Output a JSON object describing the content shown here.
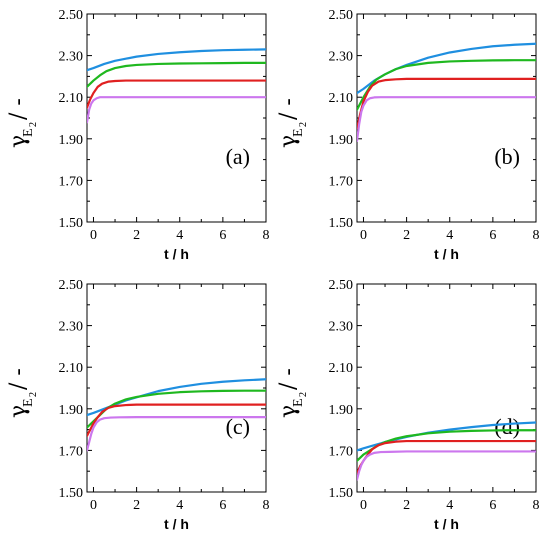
{
  "colors": {
    "blue": "#1f8fe0",
    "green": "#1fb81f",
    "red": "#e02020",
    "purple": "#cc77ee",
    "axis": "#000000"
  },
  "chart_data": [
    {
      "type": "line",
      "panel_label": "(a)",
      "xlabel": "t / h",
      "ylabel": {
        "symbol": "γ",
        "sub": "E",
        "subsub": "2",
        "suffix": "/ -"
      },
      "xlim": [
        -0.3,
        8
      ],
      "ylim": [
        1.5,
        2.5
      ],
      "xticks": [
        0,
        2,
        4,
        6,
        8
      ],
      "xtick_labels": [
        "0",
        "2",
        "4",
        "6",
        "8"
      ],
      "yticks": [
        1.5,
        1.7,
        1.9,
        2.1,
        2.3,
        2.5
      ],
      "ytick_labels": [
        "1.50",
        "1.70",
        "1.90",
        "2.10",
        "2.30",
        "2.50"
      ],
      "series": [
        {
          "color_key": "blue",
          "x": [
            -0.3,
            0,
            0.5,
            1,
            1.5,
            2,
            3,
            4,
            5,
            6,
            7,
            8
          ],
          "y": [
            2.23,
            2.24,
            2.26,
            2.275,
            2.285,
            2.295,
            2.308,
            2.316,
            2.322,
            2.326,
            2.328,
            2.33
          ]
        },
        {
          "color_key": "green",
          "x": [
            -0.3,
            0,
            0.3,
            0.6,
            1,
            1.5,
            2,
            3,
            4,
            5,
            6,
            7,
            8
          ],
          "y": [
            2.15,
            2.18,
            2.205,
            2.225,
            2.24,
            2.25,
            2.255,
            2.26,
            2.262,
            2.263,
            2.264,
            2.265,
            2.265
          ]
        },
        {
          "color_key": "red",
          "x": [
            -0.3,
            -0.15,
            0,
            0.2,
            0.4,
            0.7,
            1,
            1.5,
            2,
            3,
            4,
            5,
            6,
            7,
            8
          ],
          "y": [
            2.05,
            2.09,
            2.12,
            2.15,
            2.165,
            2.175,
            2.178,
            2.18,
            2.18,
            2.18,
            2.18,
            2.18,
            2.18,
            2.18,
            2.18
          ]
        },
        {
          "color_key": "purple",
          "x": [
            -0.3,
            -0.2,
            -0.1,
            0,
            0.15,
            0.3,
            0.5,
            0.8,
            1.2,
            2,
            4,
            6,
            8
          ],
          "y": [
            1.98,
            2.04,
            2.07,
            2.085,
            2.095,
            2.1,
            2.1,
            2.1,
            2.1,
            2.1,
            2.1,
            2.1,
            2.1
          ]
        }
      ]
    },
    {
      "type": "line",
      "panel_label": "(b)",
      "xlabel": "t / h",
      "ylabel": {
        "symbol": "γ",
        "sub": "E",
        "subsub": "2",
        "suffix": "/ -"
      },
      "xlim": [
        -0.3,
        8
      ],
      "ylim": [
        1.5,
        2.5
      ],
      "xticks": [
        0,
        2,
        4,
        6,
        8
      ],
      "xtick_labels": [
        "0",
        "2",
        "4",
        "6",
        "8"
      ],
      "yticks": [
        1.5,
        1.7,
        1.9,
        2.1,
        2.3,
        2.5
      ],
      "ytick_labels": [
        "1.50",
        "1.70",
        "1.90",
        "2.10",
        "2.30",
        "2.50"
      ],
      "series": [
        {
          "color_key": "blue",
          "x": [
            -0.3,
            0,
            0.5,
            1,
            1.5,
            2,
            3,
            4,
            5,
            6,
            7,
            8
          ],
          "y": [
            2.12,
            2.14,
            2.18,
            2.21,
            2.235,
            2.255,
            2.29,
            2.315,
            2.332,
            2.345,
            2.352,
            2.357
          ]
        },
        {
          "color_key": "green",
          "x": [
            -0.3,
            0,
            0.3,
            0.6,
            1,
            1.5,
            2,
            3,
            4,
            5,
            6,
            7,
            8
          ],
          "y": [
            2.04,
            2.1,
            2.15,
            2.185,
            2.21,
            2.235,
            2.25,
            2.265,
            2.272,
            2.275,
            2.277,
            2.278,
            2.278
          ]
        },
        {
          "color_key": "red",
          "x": [
            -0.3,
            -0.15,
            0,
            0.2,
            0.4,
            0.7,
            1,
            1.5,
            2,
            3,
            4,
            5,
            6,
            7,
            8
          ],
          "y": [
            1.95,
            2.02,
            2.08,
            2.125,
            2.155,
            2.175,
            2.182,
            2.186,
            2.188,
            2.188,
            2.188,
            2.188,
            2.188,
            2.188,
            2.188
          ]
        },
        {
          "color_key": "purple",
          "x": [
            -0.3,
            -0.2,
            -0.1,
            0,
            0.15,
            0.3,
            0.5,
            0.8,
            1.2,
            2,
            4,
            6,
            8
          ],
          "y": [
            1.89,
            1.97,
            2.03,
            2.06,
            2.085,
            2.095,
            2.099,
            2.1,
            2.1,
            2.1,
            2.1,
            2.1,
            2.1
          ]
        }
      ]
    },
    {
      "type": "line",
      "panel_label": "(c)",
      "xlabel": "t / h",
      "ylabel": {
        "symbol": "γ",
        "sub": "E",
        "subsub": "2",
        "suffix": "/ -"
      },
      "xlim": [
        -0.3,
        8
      ],
      "ylim": [
        1.5,
        2.5
      ],
      "xticks": [
        0,
        2,
        4,
        6,
        8
      ],
      "xtick_labels": [
        "0",
        "2",
        "4",
        "6",
        "8"
      ],
      "yticks": [
        1.5,
        1.7,
        1.9,
        2.1,
        2.3,
        2.5
      ],
      "ytick_labels": [
        "1.50",
        "1.70",
        "1.90",
        "2.10",
        "2.30",
        "2.50"
      ],
      "series": [
        {
          "color_key": "blue",
          "x": [
            -0.3,
            0,
            0.5,
            1,
            1.5,
            2,
            3,
            4,
            5,
            6,
            7,
            8
          ],
          "y": [
            1.87,
            1.88,
            1.9,
            1.92,
            1.94,
            1.955,
            1.985,
            2.005,
            2.02,
            2.03,
            2.037,
            2.042
          ]
        },
        {
          "color_key": "green",
          "x": [
            -0.3,
            0,
            0.3,
            0.6,
            1,
            1.5,
            2,
            3,
            4,
            5,
            6,
            7,
            8
          ],
          "y": [
            1.81,
            1.84,
            1.87,
            1.9,
            1.925,
            1.945,
            1.957,
            1.972,
            1.98,
            1.984,
            1.986,
            1.987,
            1.987
          ]
        },
        {
          "color_key": "red",
          "x": [
            -0.3,
            -0.15,
            0,
            0.2,
            0.4,
            0.7,
            1,
            1.5,
            2,
            3,
            4,
            5,
            6,
            7,
            8
          ],
          "y": [
            1.77,
            1.8,
            1.83,
            1.86,
            1.885,
            1.905,
            1.913,
            1.918,
            1.92,
            1.92,
            1.92,
            1.92,
            1.92,
            1.92,
            1.92
          ]
        },
        {
          "color_key": "purple",
          "x": [
            -0.3,
            -0.2,
            -0.1,
            0,
            0.15,
            0.3,
            0.5,
            0.8,
            1.2,
            2,
            4,
            6,
            8
          ],
          "y": [
            1.7,
            1.74,
            1.78,
            1.81,
            1.835,
            1.848,
            1.855,
            1.858,
            1.859,
            1.86,
            1.86,
            1.86,
            1.86
          ]
        }
      ]
    },
    {
      "type": "line",
      "panel_label": "(d)",
      "xlabel": "t / h",
      "ylabel": {
        "symbol": "γ",
        "sub": "E",
        "subsub": "2",
        "suffix": "/ -"
      },
      "xlim": [
        -0.3,
        8
      ],
      "ylim": [
        1.5,
        2.5
      ],
      "xticks": [
        0,
        2,
        4,
        6,
        8
      ],
      "xtick_labels": [
        "0",
        "2",
        "4",
        "6",
        "8"
      ],
      "yticks": [
        1.5,
        1.7,
        1.9,
        2.1,
        2.3,
        2.5
      ],
      "ytick_labels": [
        "1.50",
        "1.70",
        "1.90",
        "2.10",
        "2.30",
        "2.50"
      ],
      "series": [
        {
          "color_key": "blue",
          "x": [
            -0.3,
            0,
            0.5,
            1,
            1.5,
            2,
            3,
            4,
            5,
            6,
            7,
            8
          ],
          "y": [
            1.7,
            1.71,
            1.725,
            1.74,
            1.753,
            1.765,
            1.785,
            1.8,
            1.812,
            1.822,
            1.829,
            1.834
          ]
        },
        {
          "color_key": "green",
          "x": [
            -0.3,
            0,
            0.3,
            0.6,
            1,
            1.5,
            2,
            3,
            4,
            5,
            6,
            7,
            8
          ],
          "y": [
            1.65,
            1.68,
            1.7,
            1.72,
            1.74,
            1.757,
            1.768,
            1.782,
            1.79,
            1.794,
            1.796,
            1.797,
            1.797
          ]
        },
        {
          "color_key": "red",
          "x": [
            -0.3,
            -0.15,
            0,
            0.2,
            0.4,
            0.7,
            1,
            1.5,
            2,
            3,
            4,
            5,
            6,
            7,
            8
          ],
          "y": [
            1.59,
            1.625,
            1.65,
            1.68,
            1.705,
            1.725,
            1.735,
            1.742,
            1.745,
            1.745,
            1.745,
            1.745,
            1.745,
            1.745,
            1.745
          ]
        },
        {
          "color_key": "purple",
          "x": [
            -0.3,
            -0.2,
            -0.1,
            0,
            0.15,
            0.3,
            0.5,
            0.8,
            1.2,
            2,
            4,
            6,
            8
          ],
          "y": [
            1.56,
            1.6,
            1.63,
            1.65,
            1.67,
            1.68,
            1.688,
            1.692,
            1.693,
            1.695,
            1.695,
            1.695,
            1.695
          ]
        }
      ]
    }
  ]
}
